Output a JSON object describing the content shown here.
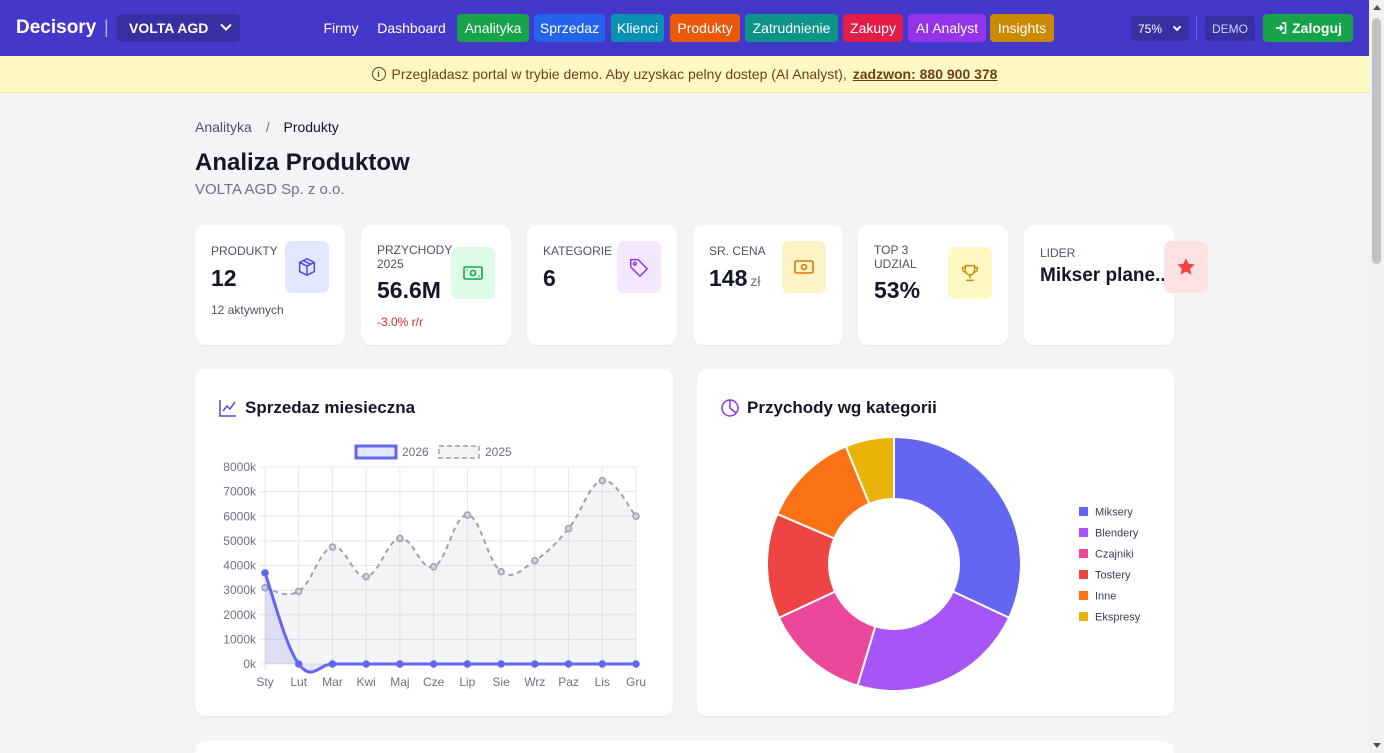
{
  "nav": {
    "brand": "Decisory",
    "separator": "|",
    "company": "VOLTA AGD",
    "links": [
      {
        "label": "Firmy",
        "color": ""
      },
      {
        "label": "Dashboard",
        "color": ""
      },
      {
        "label": "Analityka",
        "color": "#16a34a"
      },
      {
        "label": "Sprzedaz",
        "color": "#2563eb"
      },
      {
        "label": "Klienci",
        "color": "#0891b2"
      },
      {
        "label": "Produkty",
        "color": "#ea580c"
      },
      {
        "label": "Zatrudnienie",
        "color": "#0d9488"
      },
      {
        "label": "Zakupy",
        "color": "#e11d48"
      },
      {
        "label": "AI Analyst",
        "color": "#9333ea"
      },
      {
        "label": "Insights",
        "color": "#ca8a04"
      }
    ],
    "zoom": "75%",
    "demo": "DEMO",
    "login": "Zaloguj"
  },
  "banner": {
    "text": "Przegladasz portal w trybie demo. Aby uzyskac pelny dostep (AI Analyst),",
    "link": "zadzwon: 880 900 378"
  },
  "breadcrumb": {
    "parent": "Analityka",
    "separator": "/",
    "current": "Produkty"
  },
  "page": {
    "title": "Analiza Produktow",
    "subtitle": "VOLTA AGD Sp. z o.o."
  },
  "kpis": {
    "produkty": {
      "label": "PRODUKTY",
      "value": "12",
      "sub": "12 aktywnych"
    },
    "przychody": {
      "label": "PRZYCHODY 2025",
      "value": "56.6M",
      "sub": "-3.0% r/r"
    },
    "kategorie": {
      "label": "KATEGORIE",
      "value": "6"
    },
    "cena": {
      "label": "SR. CENA",
      "value": "148",
      "unit": "zł"
    },
    "top3": {
      "label": "TOP 3 UDZIAL",
      "value": "53%"
    },
    "lider": {
      "label": "LIDER",
      "value": "Mikser plane..."
    }
  },
  "sales_card": {
    "title": "Sprzedaz miesieczna"
  },
  "category_card": {
    "title": "Przychody wg kategorii"
  },
  "chart_data": [
    {
      "type": "line",
      "title": "Sprzedaz miesieczna",
      "categories": [
        "Sty",
        "Lut",
        "Mar",
        "Kwi",
        "Maj",
        "Cze",
        "Lip",
        "Sie",
        "Wrz",
        "Paz",
        "Lis",
        "Gru"
      ],
      "series": [
        {
          "name": "2026",
          "color": "#6366f1",
          "style": "solid",
          "values": [
            3700,
            0,
            0,
            0,
            0,
            0,
            0,
            0,
            0,
            0,
            0,
            0
          ]
        },
        {
          "name": "2025",
          "color": "#9ca3af",
          "style": "dashed",
          "values": [
            3100,
            2950,
            4750,
            3550,
            5100,
            3950,
            6050,
            3750,
            4200,
            5500,
            7450,
            6000
          ]
        }
      ],
      "yticks": [
        "0k",
        "1000k",
        "2000k",
        "3000k",
        "4000k",
        "5000k",
        "6000k",
        "7000k",
        "8000k"
      ],
      "ylim": [
        0,
        8000
      ],
      "unit": "k",
      "legend": "top"
    },
    {
      "type": "pie",
      "title": "Przychody wg kategorii",
      "labels": [
        "Miksery",
        "Blendery",
        "Czajniki",
        "Tostery",
        "Inne",
        "Ekspresy"
      ],
      "values": [
        31,
        22,
        13,
        13,
        12,
        6
      ],
      "colors": [
        "#6366f1",
        "#a855f7",
        "#ec4899",
        "#ef4444",
        "#f97316",
        "#eab308"
      ],
      "legend": "right"
    }
  ]
}
